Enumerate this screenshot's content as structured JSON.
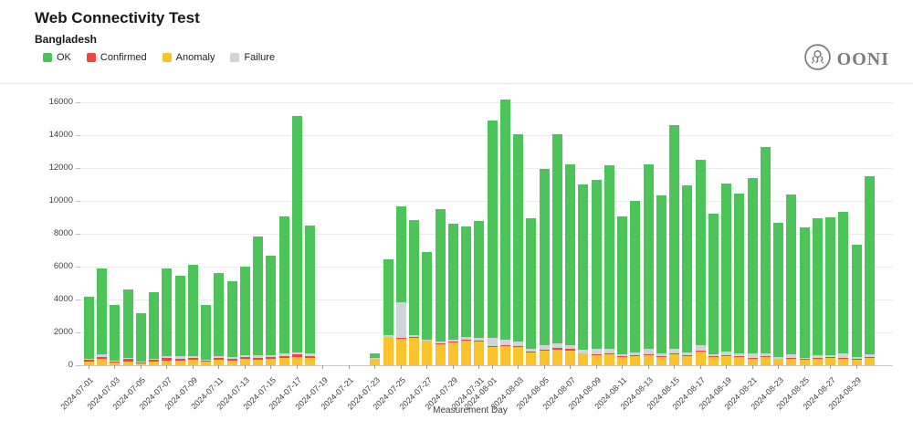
{
  "header": {
    "title": "Web Connectivity Test",
    "subtitle": "Bangladesh"
  },
  "logo": {
    "text": "OONI"
  },
  "chart_data": {
    "type": "bar",
    "stacked": true,
    "title": "Web Connectivity Test",
    "subtitle": "Bangladesh",
    "xlabel": "Measurement Day",
    "ylim": [
      0,
      16000
    ],
    "yticks": [
      0,
      2000,
      4000,
      6000,
      8000,
      10000,
      12000,
      14000,
      16000
    ],
    "grid": "horizontal",
    "legend_position": "top-left",
    "x_tick_rule": "odd calendar days labeled, rotated 45 degrees",
    "legend": [
      {
        "key": "ok",
        "label": "OK",
        "color": "#4CC45A"
      },
      {
        "key": "confirmed",
        "label": "Confirmed",
        "color": "#EE4444"
      },
      {
        "key": "anomaly",
        "label": "Anomaly",
        "color": "#FCC32C"
      },
      {
        "key": "failure",
        "label": "Failure",
        "color": "#CDD5DB"
      }
    ],
    "stack_order": [
      "anomaly",
      "confirmed",
      "failure",
      "ok"
    ],
    "days": [
      {
        "date": "2024-07-01",
        "anomaly": 250,
        "confirmed": 100,
        "failure": 60,
        "ok": 3740
      },
      {
        "date": "2024-07-02",
        "anomaly": 400,
        "confirmed": 100,
        "failure": 150,
        "ok": 5250
      },
      {
        "date": "2024-07-03",
        "anomaly": 150,
        "confirmed": 80,
        "failure": 60,
        "ok": 3360
      },
      {
        "date": "2024-07-04",
        "anomaly": 250,
        "confirmed": 120,
        "failure": 80,
        "ok": 4150
      },
      {
        "date": "2024-07-05",
        "anomaly": 120,
        "confirmed": 60,
        "failure": 50,
        "ok": 2920
      },
      {
        "date": "2024-07-06",
        "anomaly": 250,
        "confirmed": 60,
        "failure": 100,
        "ok": 4040
      },
      {
        "date": "2024-07-07",
        "anomaly": 300,
        "confirmed": 150,
        "failure": 100,
        "ok": 5350
      },
      {
        "date": "2024-07-08",
        "anomaly": 300,
        "confirmed": 100,
        "failure": 150,
        "ok": 4900
      },
      {
        "date": "2024-07-09",
        "anomaly": 350,
        "confirmed": 100,
        "failure": 100,
        "ok": 5550
      },
      {
        "date": "2024-07-10",
        "anomaly": 200,
        "confirmed": 80,
        "failure": 60,
        "ok": 3310
      },
      {
        "date": "2024-07-11",
        "anomaly": 350,
        "confirmed": 100,
        "failure": 100,
        "ok": 5050
      },
      {
        "date": "2024-07-12",
        "anomaly": 300,
        "confirmed": 100,
        "failure": 80,
        "ok": 4620
      },
      {
        "date": "2024-07-13",
        "anomaly": 400,
        "confirmed": 120,
        "failure": 80,
        "ok": 5400
      },
      {
        "date": "2024-07-14",
        "anomaly": 350,
        "confirmed": 100,
        "failure": 150,
        "ok": 7250
      },
      {
        "date": "2024-07-15",
        "anomaly": 400,
        "confirmed": 100,
        "failure": 100,
        "ok": 6050
      },
      {
        "date": "2024-07-16",
        "anomaly": 450,
        "confirmed": 100,
        "failure": 150,
        "ok": 8350
      },
      {
        "date": "2024-07-17",
        "anomaly": 500,
        "confirmed": 150,
        "failure": 150,
        "ok": 14350
      },
      {
        "date": "2024-07-18",
        "anomaly": 450,
        "confirmed": 100,
        "failure": 150,
        "ok": 7800
      },
      {
        "date": "2024-07-19",
        "anomaly": 0,
        "confirmed": 0,
        "failure": 0,
        "ok": 0
      },
      {
        "date": "2024-07-20",
        "anomaly": 0,
        "confirmed": 0,
        "failure": 0,
        "ok": 0
      },
      {
        "date": "2024-07-21",
        "anomaly": 0,
        "confirmed": 0,
        "failure": 0,
        "ok": 0
      },
      {
        "date": "2024-07-22",
        "anomaly": 0,
        "confirmed": 0,
        "failure": 0,
        "ok": 0
      },
      {
        "date": "2024-07-23",
        "anomaly": 400,
        "confirmed": 0,
        "failure": 30,
        "ok": 300
      },
      {
        "date": "2024-07-24",
        "anomaly": 1750,
        "confirmed": 0,
        "failure": 100,
        "ok": 4600
      },
      {
        "date": "2024-07-25",
        "anomaly": 1600,
        "confirmed": 50,
        "failure": 2200,
        "ok": 5800
      },
      {
        "date": "2024-07-26",
        "anomaly": 1650,
        "confirmed": 80,
        "failure": 120,
        "ok": 7000
      },
      {
        "date": "2024-07-27",
        "anomaly": 1500,
        "confirmed": 0,
        "failure": 80,
        "ok": 5320
      },
      {
        "date": "2024-07-28",
        "anomaly": 1300,
        "confirmed": 50,
        "failure": 100,
        "ok": 8050
      },
      {
        "date": "2024-07-29",
        "anomaly": 1400,
        "confirmed": 50,
        "failure": 100,
        "ok": 7050
      },
      {
        "date": "2024-07-30",
        "anomaly": 1500,
        "confirmed": 50,
        "failure": 150,
        "ok": 6750
      },
      {
        "date": "2024-07-31",
        "anomaly": 1450,
        "confirmed": 60,
        "failure": 180,
        "ok": 7110
      },
      {
        "date": "2024-08-01",
        "anomaly": 1100,
        "confirmed": 80,
        "failure": 500,
        "ok": 13220
      },
      {
        "date": "2024-08-02",
        "anomaly": 1150,
        "confirmed": 50,
        "failure": 350,
        "ok": 14600
      },
      {
        "date": "2024-08-03",
        "anomaly": 1100,
        "confirmed": 50,
        "failure": 300,
        "ok": 12600
      },
      {
        "date": "2024-08-04",
        "anomaly": 800,
        "confirmed": 50,
        "failure": 150,
        "ok": 7950
      },
      {
        "date": "2024-08-05",
        "anomaly": 900,
        "confirmed": 50,
        "failure": 250,
        "ok": 10750
      },
      {
        "date": "2024-08-06",
        "anomaly": 950,
        "confirmed": 100,
        "failure": 300,
        "ok": 12700
      },
      {
        "date": "2024-08-07",
        "anomaly": 900,
        "confirmed": 80,
        "failure": 250,
        "ok": 10970
      },
      {
        "date": "2024-08-08",
        "anomaly": 700,
        "confirmed": 50,
        "failure": 200,
        "ok": 10050
      },
      {
        "date": "2024-08-09",
        "anomaly": 600,
        "confirmed": 50,
        "failure": 350,
        "ok": 10300
      },
      {
        "date": "2024-08-10",
        "anomaly": 650,
        "confirmed": 50,
        "failure": 300,
        "ok": 11150
      },
      {
        "date": "2024-08-11",
        "anomaly": 500,
        "confirmed": 30,
        "failure": 150,
        "ok": 8370
      },
      {
        "date": "2024-08-12",
        "anomaly": 550,
        "confirmed": 50,
        "failure": 200,
        "ok": 9200
      },
      {
        "date": "2024-08-13",
        "anomaly": 600,
        "confirmed": 50,
        "failure": 350,
        "ok": 11200
      },
      {
        "date": "2024-08-14",
        "anomaly": 500,
        "confirmed": 50,
        "failure": 200,
        "ok": 9600
      },
      {
        "date": "2024-08-15",
        "anomaly": 650,
        "confirmed": 80,
        "failure": 250,
        "ok": 13620
      },
      {
        "date": "2024-08-16",
        "anomaly": 550,
        "confirmed": 50,
        "failure": 200,
        "ok": 10150
      },
      {
        "date": "2024-08-17",
        "anomaly": 850,
        "confirmed": 50,
        "failure": 350,
        "ok": 11250
      },
      {
        "date": "2024-08-18",
        "anomaly": 500,
        "confirmed": 30,
        "failure": 150,
        "ok": 8570
      },
      {
        "date": "2024-08-19",
        "anomaly": 550,
        "confirmed": 50,
        "failure": 250,
        "ok": 10200
      },
      {
        "date": "2024-08-20",
        "anomaly": 500,
        "confirmed": 50,
        "failure": 200,
        "ok": 9700
      },
      {
        "date": "2024-08-21",
        "anomaly": 400,
        "confirmed": 50,
        "failure": 270,
        "ok": 10680
      },
      {
        "date": "2024-08-22",
        "anomaly": 500,
        "confirmed": 60,
        "failure": 150,
        "ok": 12590
      },
      {
        "date": "2024-08-23",
        "anomaly": 370,
        "confirmed": 30,
        "failure": 100,
        "ok": 8150
      },
      {
        "date": "2024-08-24",
        "anomaly": 400,
        "confirmed": 30,
        "failure": 220,
        "ok": 9750
      },
      {
        "date": "2024-08-25",
        "anomaly": 350,
        "confirmed": 30,
        "failure": 80,
        "ok": 7940
      },
      {
        "date": "2024-08-26",
        "anomaly": 400,
        "confirmed": 30,
        "failure": 180,
        "ok": 8340
      },
      {
        "date": "2024-08-27",
        "anomaly": 440,
        "confirmed": 60,
        "failure": 120,
        "ok": 8380
      },
      {
        "date": "2024-08-28",
        "anomaly": 400,
        "confirmed": 40,
        "failure": 270,
        "ok": 8640
      },
      {
        "date": "2024-08-29",
        "anomaly": 350,
        "confirmed": 30,
        "failure": 100,
        "ok": 6870
      },
      {
        "date": "2024-08-30",
        "anomaly": 440,
        "confirmed": 80,
        "failure": 150,
        "ok": 10830
      }
    ]
  }
}
